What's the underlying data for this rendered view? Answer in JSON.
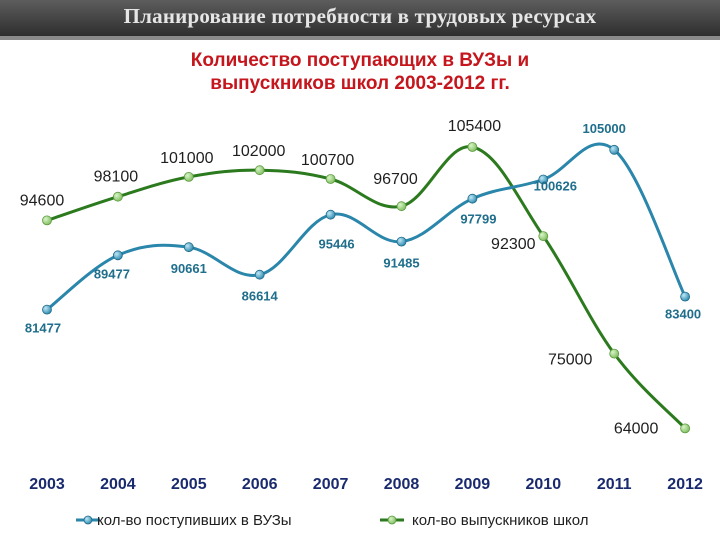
{
  "header": {
    "title": "Планирование потребности в трудовых ресурсах"
  },
  "chart_data": {
    "type": "line",
    "title_lines": [
      "Количество поступающих в ВУЗы и",
      "выпускников школ 2003-2012 гг."
    ],
    "xlabel": "",
    "ylabel": "",
    "x": [
      "2003",
      "2004",
      "2005",
      "2006",
      "2007",
      "2008",
      "2009",
      "2010",
      "2011",
      "2012"
    ],
    "grid": false,
    "legend": "bottom",
    "series": [
      {
        "name": "кол-во поступивших в ВУЗы",
        "color": "#2a86ab",
        "values": [
          81477,
          89477,
          90661,
          86614,
          95446,
          91485,
          97799,
          100626,
          105000,
          83400
        ],
        "labels": [
          "81477",
          "89477",
          "90661",
          "86614",
          "95446",
          "91485",
          "97799",
          "100626",
          "105000",
          "83400"
        ]
      },
      {
        "name": "кол-во выпускников школ",
        "color": "#2c7a1e",
        "values": [
          94600,
          98100,
          101000,
          102000,
          100700,
          96700,
          105400,
          92300,
          75000,
          64000
        ],
        "labels": [
          "94600",
          "98100",
          "101000",
          "102000",
          "100700",
          "96700",
          "105400",
          "92300",
          "75000",
          "64000"
        ]
      }
    ]
  }
}
